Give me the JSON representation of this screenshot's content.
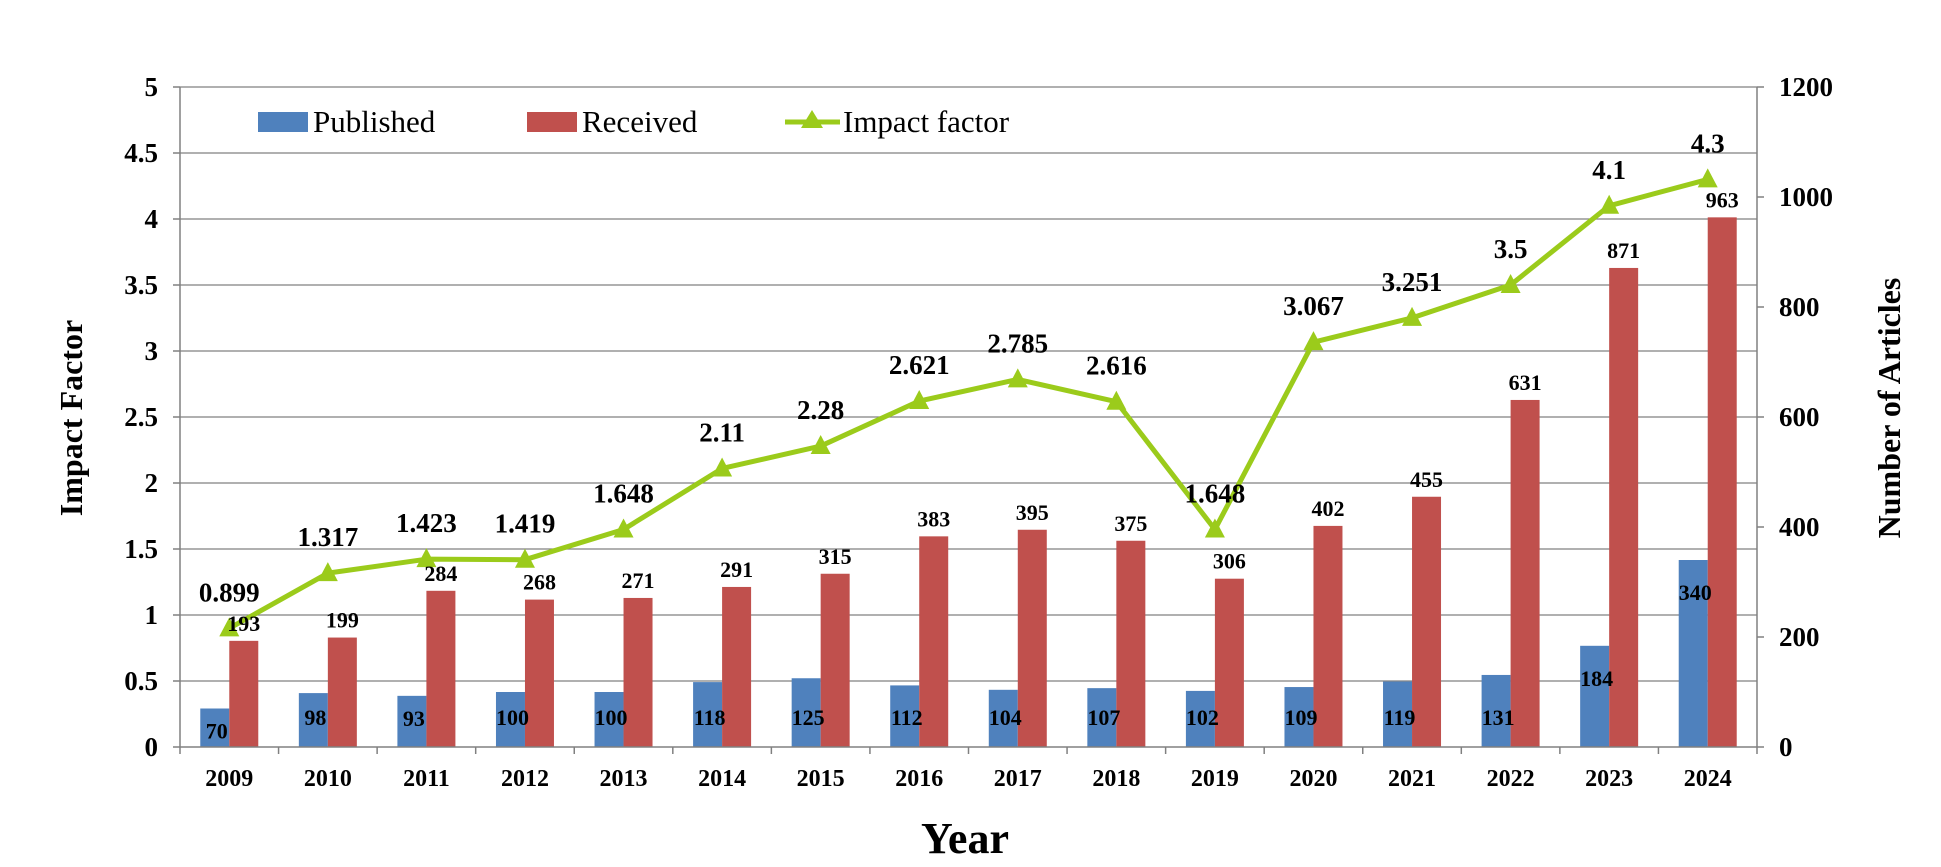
{
  "chart_data": {
    "type": "bar",
    "xlabel": "Year",
    "ylabel_left": "Impact Factor",
    "ylabel_right": "Number of Articles",
    "categories": [
      "2009",
      "2010",
      "2011",
      "2012",
      "2013",
      "2014",
      "2015",
      "2016",
      "2017",
      "2018",
      "2019",
      "2020",
      "2021",
      "2022",
      "2023",
      "2024"
    ],
    "ylim_left": [
      0,
      5
    ],
    "yticks_left": [
      "0",
      "0.5",
      "1",
      "1.5",
      "2",
      "2.5",
      "3",
      "3.5",
      "4",
      "4.5",
      "5"
    ],
    "ylim_right": [
      0,
      1200
    ],
    "yticks_right": [
      "0",
      "200",
      "400",
      "600",
      "800",
      "1000",
      "1200"
    ],
    "grid": true,
    "legend_position": "top-left",
    "series": [
      {
        "name": "Published",
        "type": "bar",
        "axis": "right",
        "color": "#4F81BD",
        "values": [
          70,
          98,
          93,
          100,
          100,
          118,
          125,
          112,
          104,
          107,
          102,
          109,
          119,
          131,
          184,
          340
        ]
      },
      {
        "name": "Received",
        "type": "bar",
        "axis": "right",
        "color": "#C0504D",
        "values": [
          193,
          199,
          284,
          268,
          271,
          291,
          315,
          383,
          395,
          375,
          306,
          402,
          455,
          631,
          871,
          963
        ]
      },
      {
        "name": "Impact factor",
        "type": "line",
        "axis": "left",
        "color": "#9BCB1B",
        "values": [
          0.899,
          1.317,
          1.423,
          1.419,
          1.648,
          2.11,
          2.28,
          2.621,
          2.785,
          2.616,
          1.648,
          3.067,
          3.251,
          3.5,
          4.1,
          4.3
        ],
        "labels": [
          "0.899",
          "1.317",
          "1.423",
          "1.419",
          "1.648",
          "2.11",
          "2.28",
          "2.621",
          "2.785",
          "2.616",
          "1.648",
          "3.067",
          "3.251",
          "3.5",
          "4.1",
          "4.3"
        ]
      }
    ]
  }
}
